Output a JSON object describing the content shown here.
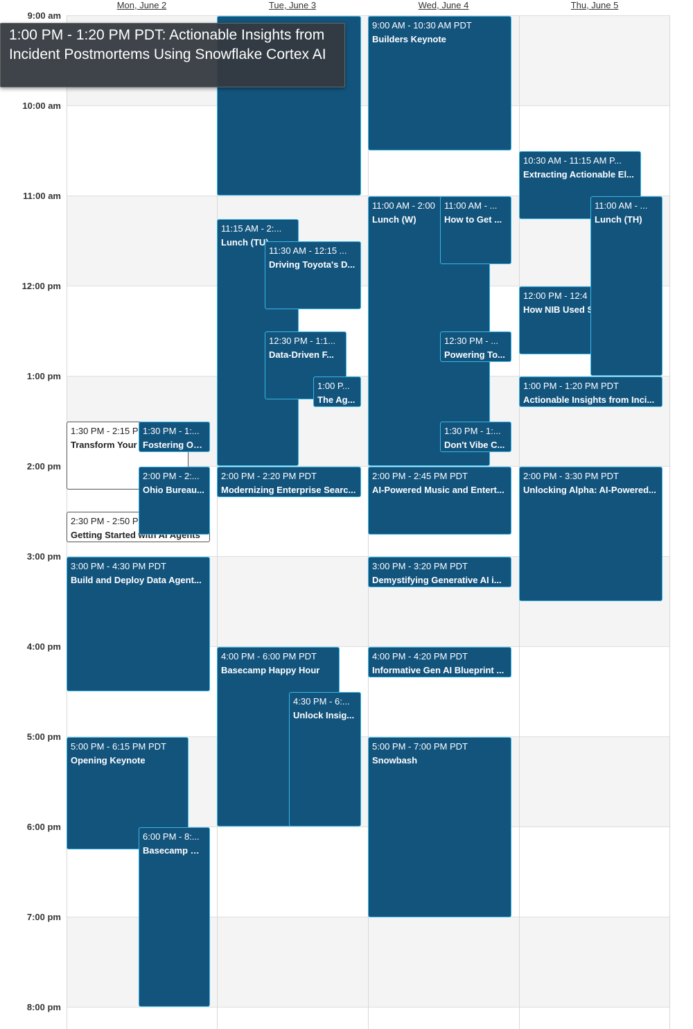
{
  "days": [
    "Mon, June 2",
    "Tue, June 3",
    "Wed, June 4",
    "Thu, June 5"
  ],
  "hours": [
    "9:00 am",
    "10:00 am",
    "11:00 am",
    "12:00 pm",
    "1:00 pm",
    "2:00 pm",
    "3:00 pm",
    "4:00 pm",
    "5:00 pm",
    "6:00 pm",
    "7:00 pm",
    "8:00 pm"
  ],
  "tooltip": "1:00 PM - 1:20 PM PDT: Actionable Insights from Incident Postmortems Using Snowflake Cortex AI",
  "events": {
    "mon": [
      {
        "time": "1:30 PM - 2:15 P",
        "name": "Transform Your"
      },
      {
        "time": "1:30 PM - 1:...",
        "name": "Fostering Op..."
      },
      {
        "time": "2:00 PM - 2:...",
        "name": "Ohio Bureau..."
      },
      {
        "time": "2:30 PM - 2:50 P",
        "name": "Getting Started with AI Agents"
      },
      {
        "time": "3:00 PM - 4:30 PM PDT",
        "name": "Build and Deploy Data Agent..."
      },
      {
        "time": "5:00 PM - 6:15 PM PDT",
        "name": "Opening Keynote"
      },
      {
        "time": "6:00 PM - 8:...",
        "name": "Basecamp W..."
      }
    ],
    "tue": [
      {
        "time": "11:15 AM - 2:...",
        "name": "Lunch (TU)"
      },
      {
        "time": "11:30 AM - 12:15 ...",
        "name": "Driving Toyota's D..."
      },
      {
        "time": "12:30 PM - 1:1...",
        "name": "Data-Driven F..."
      },
      {
        "time": "1:00 P...",
        "name": "The Ag..."
      },
      {
        "time": "2:00 PM - 2:20 PM PDT",
        "name": "Modernizing Enterprise Searc..."
      },
      {
        "time": "4:00 PM - 6:00 PM PDT",
        "name": "Basecamp Happy Hour"
      },
      {
        "time": "4:30 PM - 6:...",
        "name": "Unlock Insig..."
      }
    ],
    "wed": [
      {
        "time": "9:00 AM - 10:30 AM PDT",
        "name": "Builders Keynote"
      },
      {
        "time": "11:00 AM - 2:00",
        "name": "Lunch (W)"
      },
      {
        "time": "11:00 AM - ...",
        "name": "How to Get ..."
      },
      {
        "time": "12:30 PM - ...",
        "name": "Powering To..."
      },
      {
        "time": "1:30 PM - 1:...",
        "name": "Don't Vibe C..."
      },
      {
        "time": "2:00 PM - 2:45 PM PDT",
        "name": "AI-Powered Music and Entert..."
      },
      {
        "time": "3:00 PM - 3:20 PM PDT",
        "name": "Demystifying Generative AI i..."
      },
      {
        "time": "4:00 PM - 4:20 PM PDT",
        "name": "Informative Gen AI Blueprint ..."
      },
      {
        "time": "5:00 PM - 7:00 PM PDT",
        "name": "Snowbash"
      }
    ],
    "thu": [
      {
        "time": "10:30 AM - 11:15 AM P...",
        "name": "Extracting Actionable El..."
      },
      {
        "time": "11:00 AM - ...",
        "name": "Lunch (TH)"
      },
      {
        "time": "12:00 PM - 12:4",
        "name": "How NIB Used S"
      },
      {
        "time": "1:00 PM - 1:20 PM PDT",
        "name": "Actionable Insights from Inci..."
      },
      {
        "time": "2:00 PM - 3:30 PM PDT",
        "name": "Unlocking Alpha: AI-Powered..."
      }
    ]
  },
  "colors": {
    "event_bg": "#13547d",
    "event_border": "#37b8e6",
    "alt_band": "#f4f4f4"
  }
}
